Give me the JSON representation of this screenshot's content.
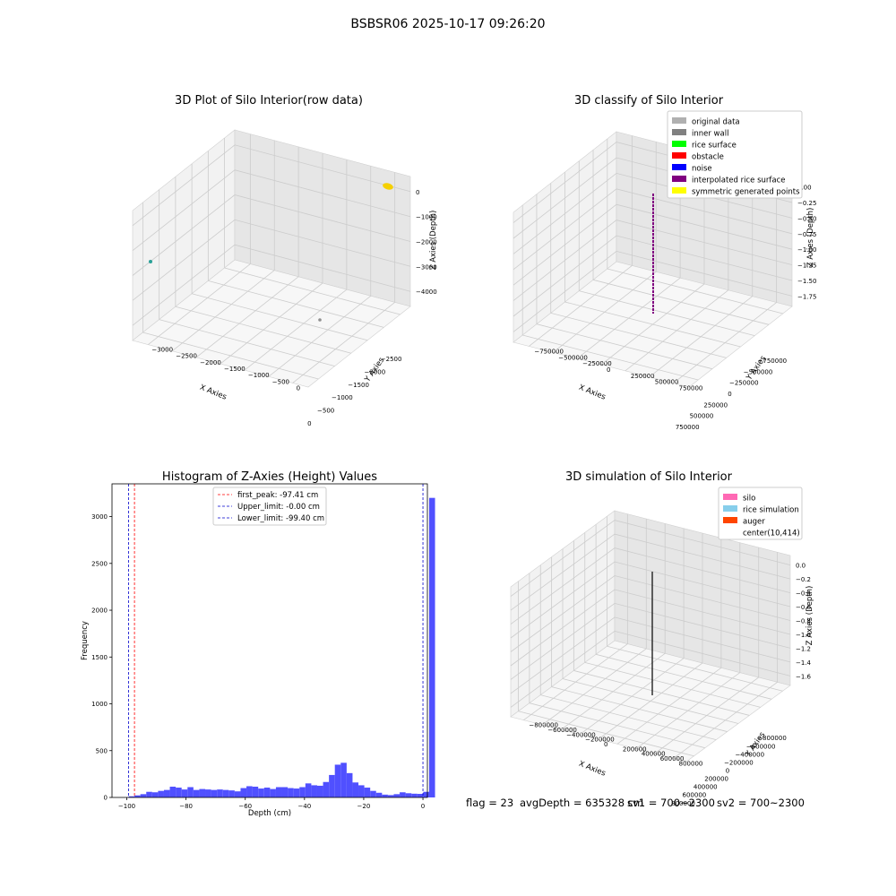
{
  "suptitle": "BSBSR06 2025-10-17 09:26:20",
  "footer": {
    "flag": "flag = 23",
    "avg_depth": "avgDepth = 635328 cm",
    "sv1": "sv1 = 700~2300",
    "sv2": "sv2 = 700~2300"
  },
  "colors": {
    "pane_left": "#f2f2f2",
    "pane_right": "#e6e6e6",
    "pane_floor": "#f7f7f7",
    "grid": "#cccccc",
    "hist_bar": "#5050ff",
    "peak_line": "#ff0000",
    "limit_line": "#0000cc",
    "yellow_points": "#f5d000",
    "purple_line": "#800080",
    "black_line": "#000000"
  },
  "chart_data": [
    {
      "id": "raw",
      "type": "scatter",
      "title": "3D Plot of Silo Interior(row data)",
      "xlabel": "X Axies",
      "ylabel": "Y Axies",
      "zlabel": "Z Axies (Depth)",
      "x_ticks": [
        "−2500",
        "−2000",
        "−1500",
        "−1000",
        "−500",
        "0"
      ],
      "y_ticks": [
        "0",
        "−500",
        "−1000",
        "−1500",
        "−2000",
        "−2500",
        "−3000"
      ],
      "z_ticks": [
        "0",
        "−1000",
        "−2000",
        "−3000",
        "−4000"
      ],
      "points": [
        {
          "label": "teal point",
          "color": "#2aa198"
        },
        {
          "label": "gray point",
          "color": "#909090"
        },
        {
          "label": "yellow cluster",
          "color": "#f5d000"
        }
      ]
    },
    {
      "id": "classify",
      "type": "scatter",
      "title": "3D classify of Silo Interior",
      "xlabel": "X Axies",
      "ylabel": "Y Axies",
      "zlabel": "Z Axies (Depth)",
      "x_ticks": [
        "−750000",
        "−500000",
        "−250000",
        "0",
        "250000",
        "500000",
        "750000"
      ],
      "y_ticks": [
        "750000",
        "500000",
        "250000",
        "0",
        "−250000",
        "−500000",
        "−750000"
      ],
      "z_ticks": [
        "0.00",
        "−0.25",
        "−0.50",
        "−0.75",
        "−1.00",
        "−1.25",
        "−1.50",
        "−1.75"
      ],
      "legend_position": "upper-right",
      "legend": [
        {
          "label": "original data",
          "color": "#b0b0b0"
        },
        {
          "label": "inner wall",
          "color": "#808080"
        },
        {
          "label": "rice surface",
          "color": "#00ff00"
        },
        {
          "label": "obstacle",
          "color": "#ff0000"
        },
        {
          "label": "noise",
          "color": "#0000ff"
        },
        {
          "label": "interpolated rice surface",
          "color": "#800080"
        },
        {
          "label": "symmetric generated points",
          "color": "#ffff00"
        }
      ]
    },
    {
      "id": "hist",
      "type": "bar",
      "title": "Histogram of Z-Axies (Height) Values",
      "xlabel": "Depth (cm)",
      "ylabel": "Frequency",
      "xlim": [
        -105,
        1.5
      ],
      "ylim": [
        0,
        3350
      ],
      "x_ticks": [
        {
          "v": -100,
          "label": "−100"
        },
        {
          "v": -80,
          "label": "−80"
        },
        {
          "v": -60,
          "label": "−60"
        },
        {
          "v": -40,
          "label": "−40"
        },
        {
          "v": -20,
          "label": "−20"
        },
        {
          "v": 0,
          "label": "0"
        }
      ],
      "y_ticks": [
        {
          "v": 0,
          "label": "0"
        },
        {
          "v": 500,
          "label": "500"
        },
        {
          "v": 1000,
          "label": "1000"
        },
        {
          "v": 1500,
          "label": "1500"
        },
        {
          "v": 2000,
          "label": "2000"
        },
        {
          "v": 2500,
          "label": "2500"
        },
        {
          "v": 3000,
          "label": "3000"
        }
      ],
      "bin_start": -99.4,
      "bin_width": 1.99,
      "counts": [
        12,
        22,
        35,
        60,
        55,
        70,
        80,
        115,
        105,
        85,
        110,
        80,
        90,
        85,
        80,
        85,
        80,
        75,
        65,
        100,
        120,
        115,
        95,
        105,
        90,
        110,
        110,
        100,
        95,
        110,
        150,
        130,
        125,
        165,
        240,
        350,
        370,
        260,
        160,
        130,
        105,
        70,
        50,
        30,
        25,
        35,
        55,
        45,
        40,
        38,
        60,
        3200
      ],
      "vlines": [
        {
          "x": -97.41,
          "label": "first_peak: -97.41 cm",
          "color": "#ff0000"
        },
        {
          "x": 0.0,
          "label": "Upper_limit: -0.00 cm",
          "color": "#0000cc"
        },
        {
          "x": -99.4,
          "label": "Lower_limit: -99.40 cm",
          "color": "#0000cc"
        }
      ],
      "legend_position": "upper-center"
    },
    {
      "id": "sim",
      "type": "line",
      "title": "3D simulation of Silo Interior",
      "xlabel": "X Axies",
      "ylabel": "Y Axies",
      "zlabel": "Z Axies (Depth)",
      "x_ticks": [
        "−800000",
        "−600000",
        "−400000",
        "−200000",
        "0",
        "200000",
        "400000",
        "600000",
        "800000"
      ],
      "y_ticks": [
        "800000",
        "600000",
        "400000",
        "200000",
        "0",
        "−200000",
        "−400000",
        "−600000",
        "−800000"
      ],
      "z_ticks": [
        "0.0",
        "−0.2",
        "−0.4",
        "−0.6",
        "−0.8",
        "−1.0",
        "−1.2",
        "−1.4",
        "−1.6"
      ],
      "legend_position": "upper-right",
      "legend": [
        {
          "label": "silo",
          "color": "#ff69b4"
        },
        {
          "label": "rice simulation",
          "color": "#87ceeb"
        },
        {
          "label": "auger",
          "color": "#ff4500"
        },
        {
          "label": "center(10,414)",
          "color": "#ffffff"
        }
      ]
    }
  ]
}
